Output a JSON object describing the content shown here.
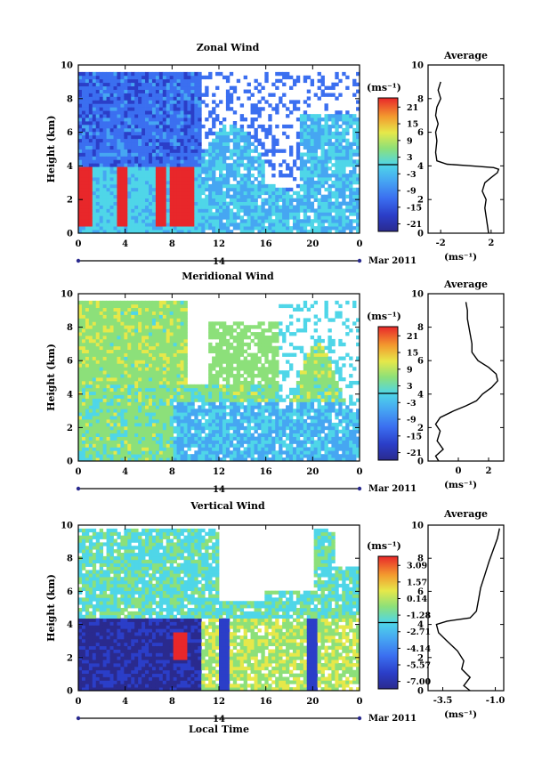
{
  "chart_data": [
    {
      "type": "heatmap",
      "title": "Zonal Wind",
      "ylabel": "Height (km)",
      "unit_label": "(ms⁻¹)",
      "x_ticks": [
        "0",
        "4",
        "8",
        "12",
        "16",
        "20",
        "0"
      ],
      "y_ticks": [
        "0",
        "2",
        "4",
        "6",
        "8",
        "10"
      ],
      "ylim": [
        0,
        10
      ],
      "xlim": [
        0,
        24
      ],
      "colorbar_ticks": [
        "21",
        "15",
        "9",
        "3",
        "-3",
        "-9",
        "-15",
        "-21"
      ],
      "date_day": "14",
      "date_label": "Mar 2011",
      "contour_level": 0,
      "profile": {
        "title": "Average",
        "x_ticks": [
          "-2",
          "2"
        ],
        "xlim": [
          -3,
          3
        ],
        "xlabel": "(ms⁻¹)",
        "y_ticks": [
          "0",
          "2",
          "4",
          "6",
          "8",
          "10"
        ],
        "points": [
          [
            1.8,
            0.0
          ],
          [
            1.7,
            0.5
          ],
          [
            1.6,
            1.0
          ],
          [
            1.5,
            1.5
          ],
          [
            1.6,
            2.0
          ],
          [
            1.3,
            2.5
          ],
          [
            1.5,
            3.0
          ],
          [
            2.0,
            3.3
          ],
          [
            2.5,
            3.6
          ],
          [
            2.6,
            3.8
          ],
          [
            2.2,
            3.9
          ],
          [
            0.5,
            4.0
          ],
          [
            -1.5,
            4.1
          ],
          [
            -2.3,
            4.3
          ],
          [
            -2.4,
            4.8
          ],
          [
            -2.3,
            5.5
          ],
          [
            -2.4,
            6.0
          ],
          [
            -2.2,
            6.5
          ],
          [
            -2.4,
            7.0
          ],
          [
            -2.3,
            7.5
          ],
          [
            -2.0,
            8.0
          ],
          [
            -2.2,
            8.5
          ],
          [
            -2.0,
            9.0
          ]
        ]
      }
    },
    {
      "type": "heatmap",
      "title": "Meridional Wind",
      "ylabel": "Height (km)",
      "unit_label": "(ms⁻¹)",
      "x_ticks": [
        "0",
        "4",
        "8",
        "12",
        "16",
        "20",
        "0"
      ],
      "y_ticks": [
        "0",
        "2",
        "4",
        "6",
        "8",
        "10"
      ],
      "ylim": [
        0,
        10
      ],
      "xlim": [
        0,
        24
      ],
      "colorbar_ticks": [
        "21",
        "15",
        "9",
        "3",
        "-3",
        "-9",
        "-15",
        "-21"
      ],
      "date_day": "14",
      "date_label": "Mar 2011",
      "contour_level": 0,
      "profile": {
        "title": "Average",
        "x_ticks": [
          "0",
          "2"
        ],
        "xlim": [
          -2,
          3
        ],
        "xlabel": "(ms⁻¹)",
        "y_ticks": [
          "0",
          "2",
          "4",
          "6",
          "8",
          "10"
        ],
        "points": [
          [
            -1.3,
            0.0
          ],
          [
            -1.5,
            0.3
          ],
          [
            -1.0,
            0.7
          ],
          [
            -1.4,
            1.2
          ],
          [
            -1.2,
            1.8
          ],
          [
            -1.5,
            2.2
          ],
          [
            -1.2,
            2.6
          ],
          [
            -0.3,
            3.0
          ],
          [
            0.5,
            3.3
          ],
          [
            1.2,
            3.6
          ],
          [
            1.6,
            4.0
          ],
          [
            2.2,
            4.4
          ],
          [
            2.6,
            4.8
          ],
          [
            2.5,
            5.2
          ],
          [
            2.0,
            5.6
          ],
          [
            1.3,
            6.0
          ],
          [
            0.9,
            6.5
          ],
          [
            0.9,
            7.0
          ],
          [
            0.8,
            7.5
          ],
          [
            0.7,
            8.0
          ],
          [
            0.6,
            8.5
          ],
          [
            0.6,
            9.0
          ],
          [
            0.5,
            9.5
          ]
        ]
      }
    },
    {
      "type": "heatmap",
      "title": "Vertical Wind",
      "ylabel": "Height (km)",
      "xlabel": "Local Time",
      "unit_label": "(ms⁻¹)",
      "x_ticks": [
        "0",
        "4",
        "8",
        "12",
        "16",
        "20",
        "0"
      ],
      "y_ticks": [
        "0",
        "2",
        "4",
        "6",
        "8",
        "10"
      ],
      "ylim": [
        0,
        10
      ],
      "xlim": [
        0,
        24
      ],
      "colorbar_ticks": [
        "3.09",
        "1.57",
        "0.14",
        "-1.28",
        "-2.71",
        "-4.14",
        "-5.57",
        "-7.00"
      ],
      "date_day": "14",
      "date_label": "Mar 2011",
      "contour_level": -1.28,
      "profile": {
        "title": "Average",
        "x_ticks": [
          "-3.5",
          "-1.0"
        ],
        "xlim": [
          -4.2,
          -0.6
        ],
        "xlabel": "(ms⁻¹)",
        "y_ticks": [
          "0",
          "2",
          "4",
          "6",
          "8",
          "10"
        ],
        "points": [
          [
            -2.2,
            0.0
          ],
          [
            -2.5,
            0.3
          ],
          [
            -2.2,
            0.8
          ],
          [
            -2.6,
            1.3
          ],
          [
            -2.5,
            1.8
          ],
          [
            -2.8,
            2.4
          ],
          [
            -3.3,
            3.0
          ],
          [
            -3.7,
            3.5
          ],
          [
            -3.8,
            4.0
          ],
          [
            -3.3,
            4.2
          ],
          [
            -2.2,
            4.4
          ],
          [
            -1.9,
            4.8
          ],
          [
            -1.8,
            5.5
          ],
          [
            -1.7,
            6.2
          ],
          [
            -1.5,
            7.0
          ],
          [
            -1.3,
            7.8
          ],
          [
            -1.1,
            8.5
          ],
          [
            -0.9,
            9.2
          ],
          [
            -0.8,
            9.8
          ]
        ]
      }
    }
  ]
}
